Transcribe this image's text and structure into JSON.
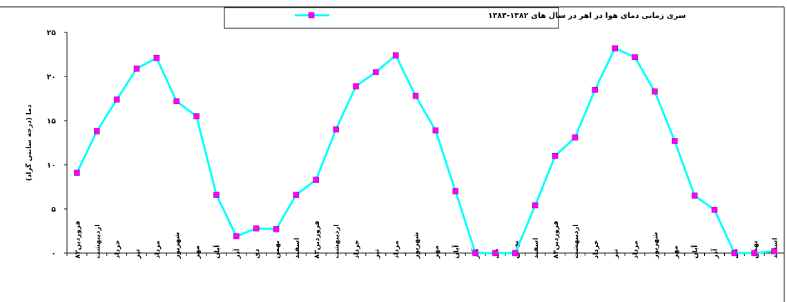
{
  "colors": {
    "line": "#00ffff",
    "marker": "#ff00ff",
    "marker_stroke": "#660066",
    "axis": "#000000"
  },
  "chart_data": {
    "type": "line",
    "title": "",
    "xlabel": "",
    "ylabel": "دما (درجه سانتی گراد)",
    "ylim": [
      0,
      25
    ],
    "y_ticks": [
      "۰",
      "۵",
      "۱۰",
      "۱۵",
      "۲۰",
      "۲۵"
    ],
    "grid": false,
    "legend_position": "top-center",
    "categories": [
      "فروردین۸۲",
      "اردیبهشت",
      "خرداد",
      "تیر",
      "مرداد",
      "شهریور",
      "مهر",
      "آبان",
      "آذر",
      "دی",
      "بهمن",
      "اسفند",
      "فروردین۸۳",
      "اردیبهشت",
      "خرداد",
      "تیر",
      "مرداد",
      "شهریور",
      "مهر",
      "آبان",
      "آذر",
      "دی",
      "بهمن",
      "اسفند",
      "فروردین۸۴",
      "اردیبهشت",
      "خرداد",
      "تیر",
      "مرداد",
      "شهریور",
      "مهر",
      "آبان",
      "آذر",
      "دی",
      "بهمن",
      "اسفند"
    ],
    "series": [
      {
        "name": "سری زمانی دمای هوا در اهر در سال های ۱۳۸۲-۱۳۸۴",
        "values": [
          9.1,
          13.8,
          17.4,
          20.9,
          22.1,
          17.2,
          15.5,
          6.6,
          1.9,
          2.8,
          2.7,
          6.6,
          8.3,
          14.0,
          18.9,
          20.5,
          22.4,
          17.8,
          13.9,
          7.0,
          0.0,
          0.0,
          0.0,
          5.4,
          11.0,
          13.1,
          18.5,
          23.2,
          22.2,
          18.3,
          12.7,
          6.5,
          4.9,
          0.0,
          0.0,
          0.2
        ]
      }
    ]
  }
}
